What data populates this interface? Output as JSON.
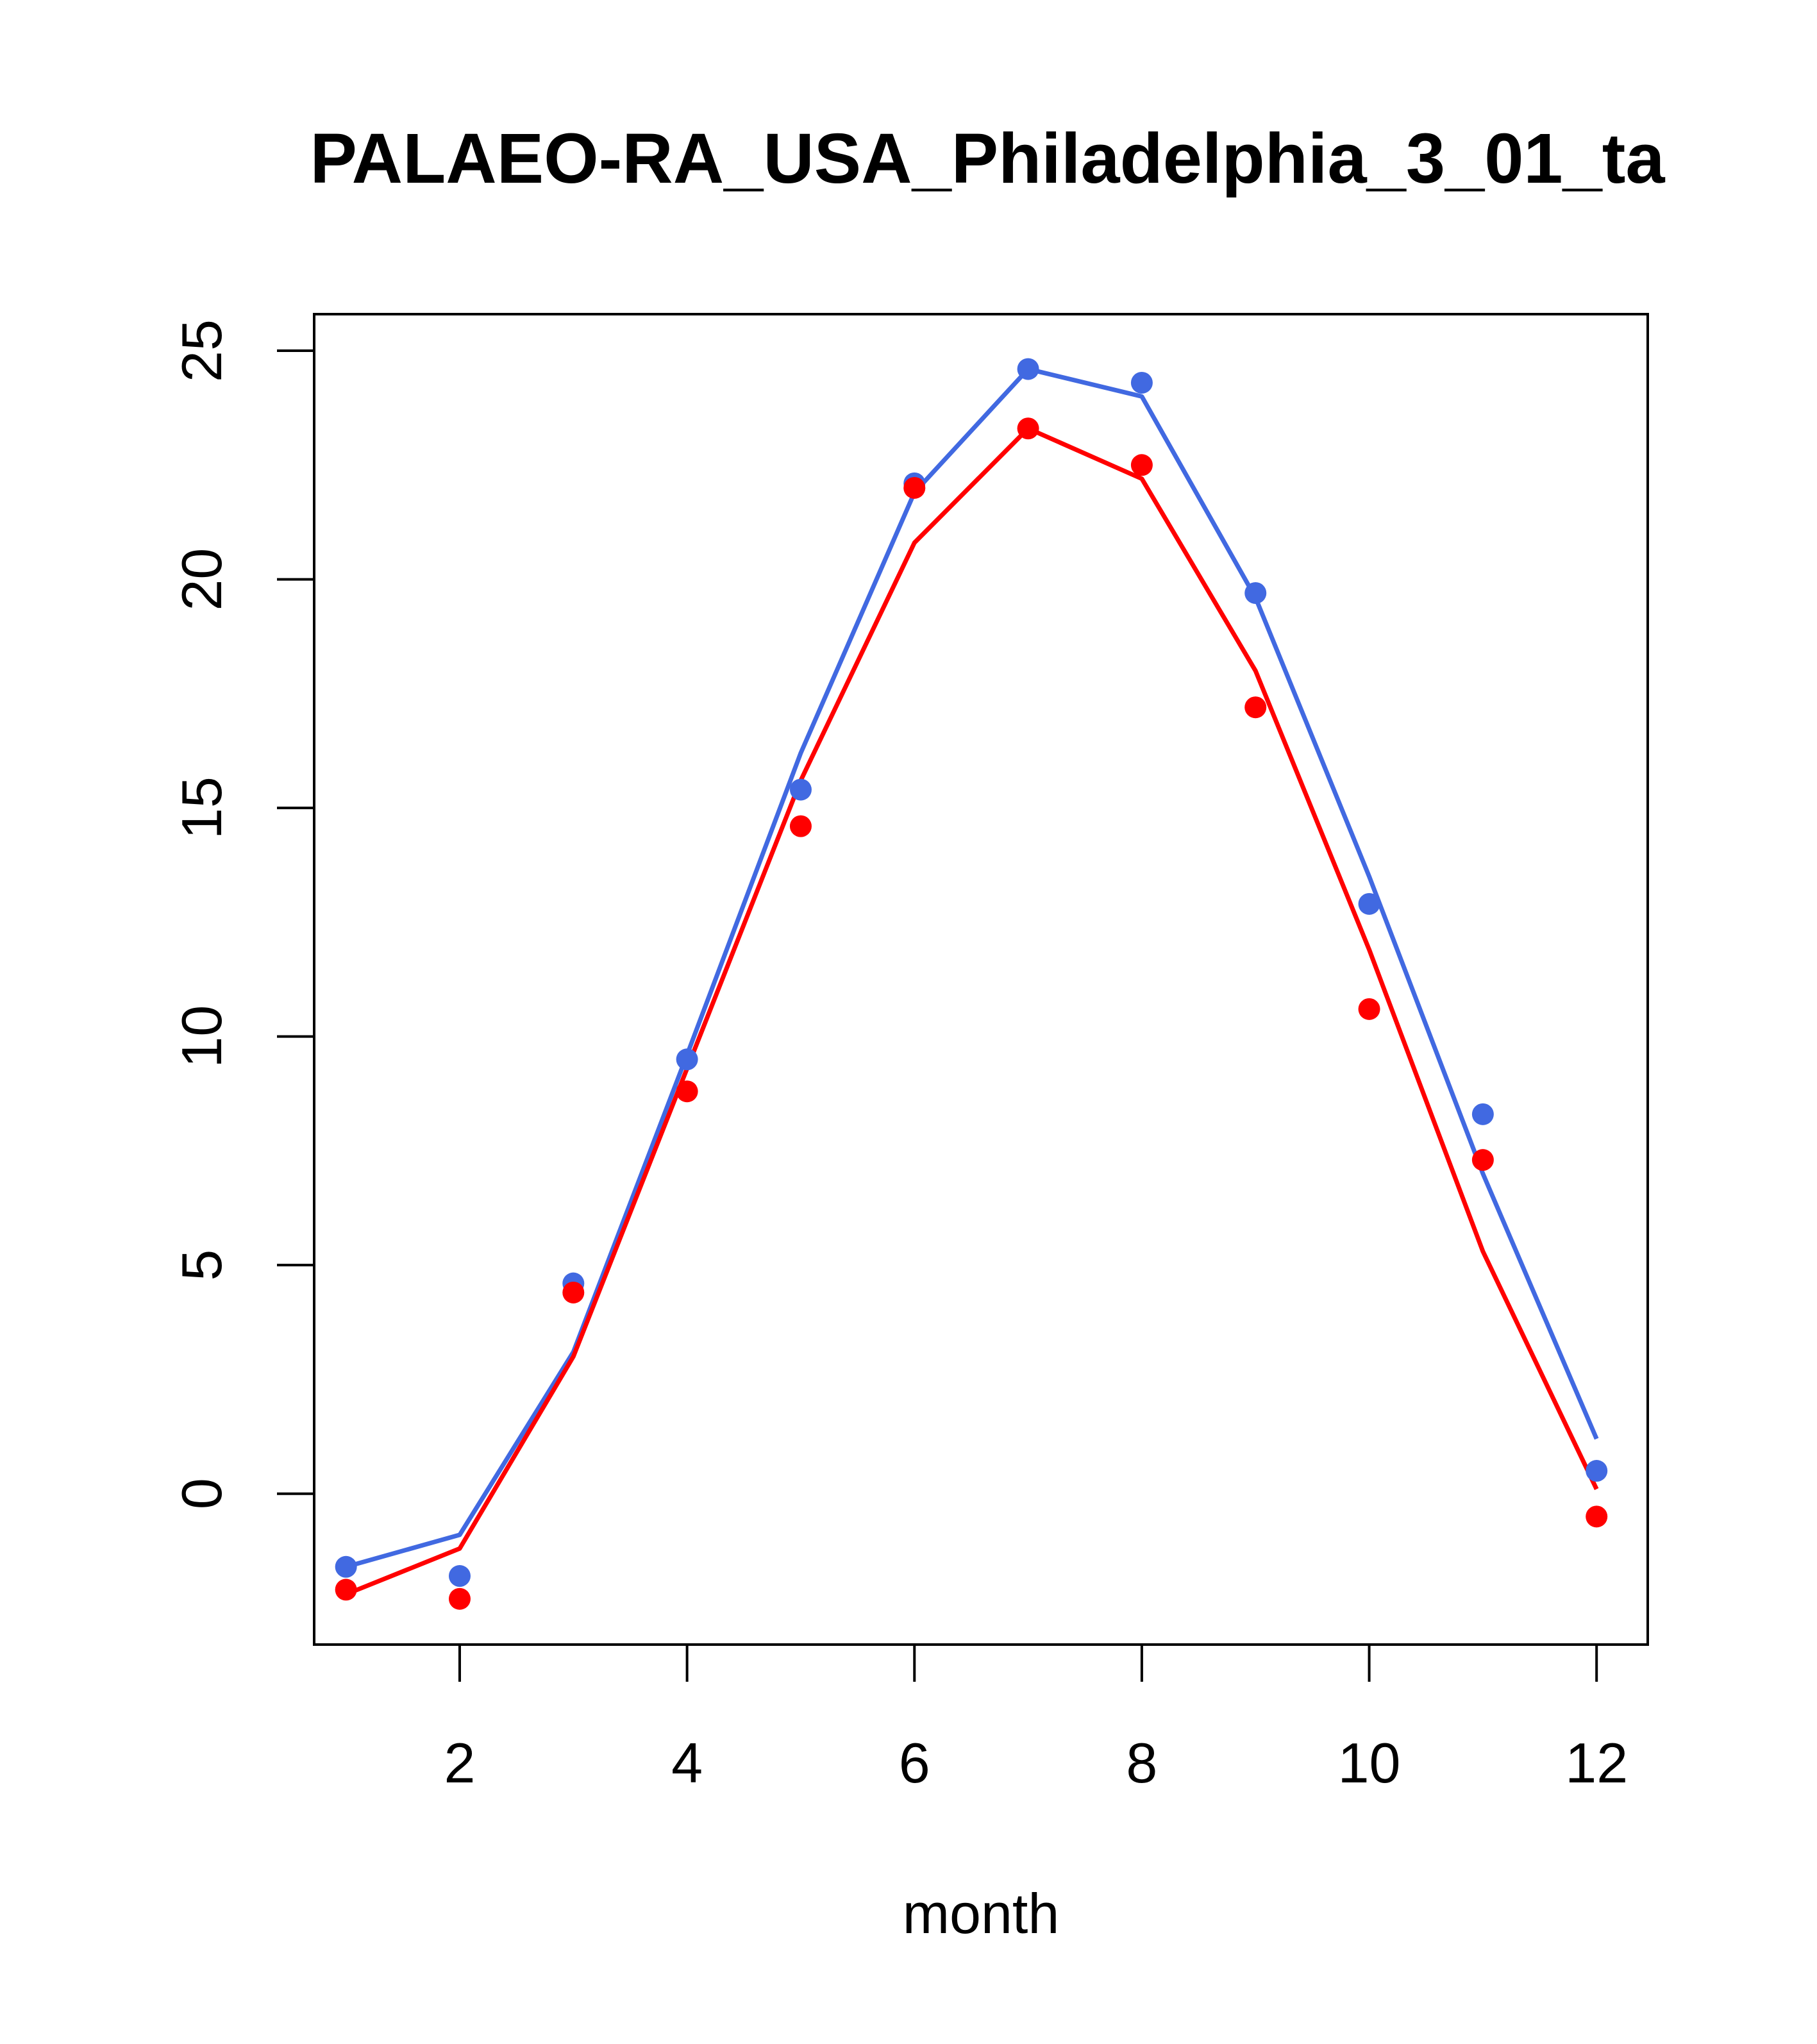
{
  "chart_data": {
    "type": "line",
    "title": "PALAEO-RA_USA_Philadelphia_3_01_ta",
    "xlabel": "month",
    "ylabel": "",
    "xlim": [
      0.72,
      12.45
    ],
    "ylim": [
      -3.3,
      25.8
    ],
    "x_ticks": [
      2,
      4,
      6,
      8,
      10,
      12
    ],
    "y_ticks": [
      0,
      5,
      10,
      15,
      20,
      25
    ],
    "grid": false,
    "x": [
      1,
      2,
      3,
      4,
      5,
      6,
      7,
      8,
      9,
      10,
      11,
      12
    ],
    "series": [
      {
        "color": "#4169E1",
        "line": [
          -1.6,
          -0.9,
          3.1,
          9.6,
          16.2,
          21.9,
          24.6,
          24.0,
          19.6,
          13.5,
          7.0,
          1.2
        ],
        "points": [
          -1.6,
          -1.8,
          4.6,
          9.5,
          15.4,
          22.1,
          24.6,
          24.3,
          19.7,
          12.9,
          8.3,
          0.5
        ]
      },
      {
        "color": "#FF0000",
        "line": [
          -2.2,
          -1.2,
          3.0,
          9.3,
          15.6,
          20.8,
          23.3,
          22.2,
          18.0,
          11.9,
          5.3,
          0.1
        ],
        "points": [
          -2.1,
          -2.3,
          4.4,
          8.8,
          14.6,
          22.0,
          23.3,
          22.5,
          17.2,
          10.6,
          7.3,
          -0.5
        ]
      }
    ]
  }
}
